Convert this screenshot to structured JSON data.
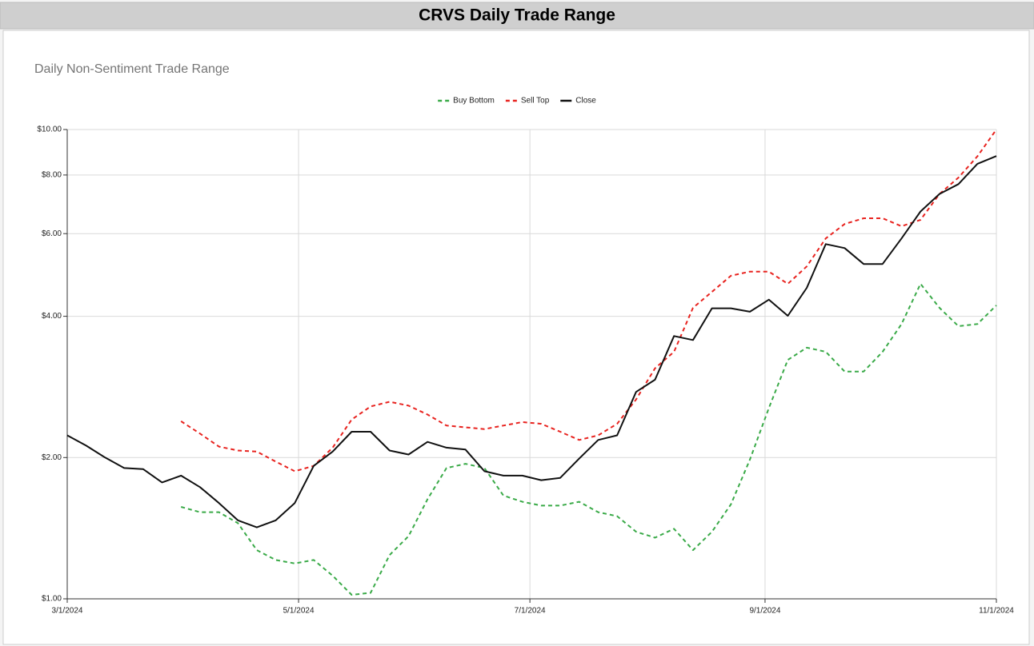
{
  "banner": "CRVS Daily Trade Range",
  "chart_data": {
    "type": "line",
    "title": "Daily Non-Sentiment Trade Range",
    "legend": "top",
    "log_y": true,
    "grid": true,
    "x": [
      "3/1/2024",
      "3/6/2024",
      "3/11/2024",
      "3/16/2024",
      "3/21/2024",
      "3/26/2024",
      "3/31/2024",
      "4/5/2024",
      "4/10/2024",
      "4/15/2024",
      "4/20/2024",
      "4/25/2024",
      "4/30/2024",
      "5/5/2024",
      "5/10/2024",
      "5/15/2024",
      "5/20/2024",
      "5/25/2024",
      "5/30/2024",
      "6/4/2024",
      "6/9/2024",
      "6/14/2024",
      "6/19/2024",
      "6/24/2024",
      "6/29/2024",
      "7/4/2024",
      "7/9/2024",
      "7/14/2024",
      "7/19/2024",
      "7/24/2024",
      "7/29/2024",
      "8/3/2024",
      "8/8/2024",
      "8/13/2024",
      "8/18/2024",
      "8/23/2024",
      "8/28/2024",
      "9/2/2024",
      "9/7/2024",
      "9/12/2024",
      "9/17/2024",
      "9/22/2024",
      "9/27/2024",
      "10/2/2024",
      "10/7/2024",
      "10/12/2024",
      "10/17/2024",
      "10/22/2024",
      "10/27/2024",
      "11/1/2024"
    ],
    "series": [
      {
        "name": "Buy Bottom",
        "color": "#3aaa48",
        "style": "dashed",
        "values": [
          null,
          null,
          null,
          null,
          null,
          null,
          1.57,
          1.53,
          1.53,
          1.45,
          1.27,
          1.21,
          1.19,
          1.21,
          1.12,
          1.02,
          1.03,
          1.24,
          1.36,
          1.63,
          1.9,
          1.94,
          1.9,
          1.66,
          1.61,
          1.58,
          1.58,
          1.61,
          1.53,
          1.5,
          1.39,
          1.35,
          1.41,
          1.27,
          1.39,
          1.59,
          1.98,
          2.55,
          3.23,
          3.43,
          3.36,
          3.05,
          3.05,
          3.36,
          3.85,
          4.69,
          4.17,
          3.81,
          3.85,
          4.22
        ]
      },
      {
        "name": "Sell Top",
        "color": "#e8231f",
        "style": "dashed",
        "values": [
          null,
          null,
          null,
          null,
          null,
          null,
          2.39,
          2.25,
          2.11,
          2.07,
          2.06,
          1.96,
          1.87,
          1.92,
          2.1,
          2.41,
          2.57,
          2.63,
          2.58,
          2.47,
          2.34,
          2.32,
          2.3,
          2.34,
          2.38,
          2.36,
          2.27,
          2.18,
          2.23,
          2.36,
          2.66,
          3.1,
          3.36,
          4.17,
          4.51,
          4.88,
          4.98,
          4.98,
          4.69,
          5.11,
          5.86,
          6.29,
          6.47,
          6.47,
          6.22,
          6.42,
          7.29,
          7.9,
          8.77,
          10.0
        ]
      },
      {
        "name": "Close",
        "color": "#111111",
        "style": "solid",
        "values": [
          2.23,
          2.12,
          2.0,
          1.9,
          1.89,
          1.77,
          1.83,
          1.73,
          1.6,
          1.47,
          1.42,
          1.47,
          1.6,
          1.92,
          2.06,
          2.27,
          2.27,
          2.07,
          2.03,
          2.16,
          2.1,
          2.08,
          1.87,
          1.83,
          1.83,
          1.79,
          1.81,
          1.99,
          2.18,
          2.23,
          2.76,
          2.93,
          3.63,
          3.56,
          4.16,
          4.16,
          4.09,
          4.34,
          4.01,
          4.6,
          5.7,
          5.59,
          5.17,
          5.17,
          5.86,
          6.69,
          7.29,
          7.65,
          8.45,
          8.78
        ]
      }
    ],
    "xlim": [
      "3/1/2024",
      "11/1/2024"
    ],
    "xticks": [
      "3/1/2024",
      "5/1/2024",
      "7/1/2024",
      "9/1/2024",
      "11/1/2024"
    ],
    "ylim": [
      1,
      10
    ],
    "yticks": [
      {
        "value": 1,
        "label": "$1.00"
      },
      {
        "value": 2,
        "label": "$2.00"
      },
      {
        "value": 4,
        "label": "$4.00"
      },
      {
        "value": 6,
        "label": "$6.00"
      },
      {
        "value": 8,
        "label": "$8.00"
      },
      {
        "value": 10,
        "label": "$10.00"
      }
    ]
  }
}
